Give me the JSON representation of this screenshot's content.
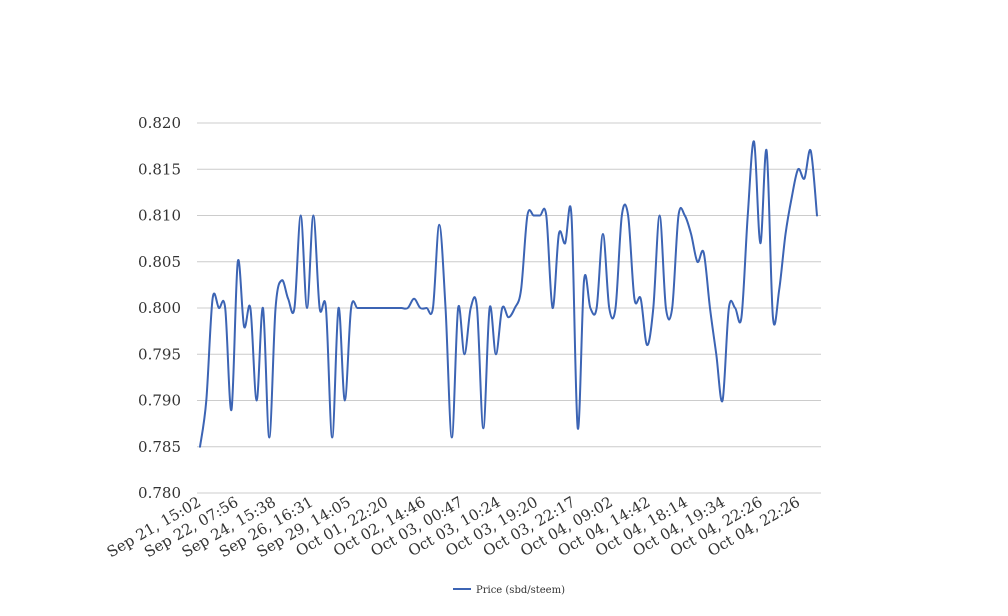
{
  "chart_data": {
    "type": "line",
    "title": "",
    "xlabel": "",
    "ylabel": "",
    "ylim": [
      0.78,
      0.82
    ],
    "y_ticks": [
      "0.820",
      "0.815",
      "0.810",
      "0.805",
      "0.800",
      "0.795",
      "0.790",
      "0.785",
      "0.780"
    ],
    "grid": true,
    "legend_position": "bottom-center",
    "x_tick_labels": [
      "Sep 21, 15:02",
      "Sep 22, 07:56",
      "Sep 24, 15:38",
      "Sep 26, 16:31",
      "Sep 29, 14:05",
      "Oct 01, 22:20",
      "Oct 02, 14:46",
      "Oct 03, 00:47",
      "Oct 03, 10:24",
      "Oct 03, 19:20",
      "Oct 03, 22:17",
      "Oct 04, 09:02",
      "Oct 04, 14:42",
      "Oct 04, 18:14",
      "Oct 04, 19:34",
      "Oct 04, 22:26",
      "Oct 04, 22:26"
    ],
    "series": [
      {
        "name": "Price (sbd/steem)",
        "color": "#3c64b4",
        "values": [
          0.785,
          0.79,
          0.801,
          0.8,
          0.8,
          0.789,
          0.805,
          0.798,
          0.8,
          0.79,
          0.8,
          0.786,
          0.8,
          0.803,
          0.801,
          0.8,
          0.81,
          0.8,
          0.81,
          0.8,
          0.8,
          0.786,
          0.8,
          0.79,
          0.8,
          0.8,
          0.8,
          0.8,
          0.8,
          0.8,
          0.8,
          0.8,
          0.8,
          0.8,
          0.801,
          0.8,
          0.8,
          0.8,
          0.809,
          0.8,
          0.786,
          0.8,
          0.795,
          0.8,
          0.8,
          0.787,
          0.8,
          0.795,
          0.8,
          0.799,
          0.8,
          0.802,
          0.81,
          0.81,
          0.81,
          0.81,
          0.8,
          0.808,
          0.807,
          0.81,
          0.787,
          0.803,
          0.8,
          0.8,
          0.808,
          0.8,
          0.8,
          0.81,
          0.81,
          0.801,
          0.801,
          0.796,
          0.8,
          0.81,
          0.8,
          0.8,
          0.81,
          0.81,
          0.808,
          0.805,
          0.806,
          0.8,
          0.795,
          0.79,
          0.8,
          0.8,
          0.799,
          0.81,
          0.818,
          0.807,
          0.817,
          0.799,
          0.802,
          0.808,
          0.812,
          0.815,
          0.814,
          0.817,
          0.81
        ]
      }
    ]
  }
}
